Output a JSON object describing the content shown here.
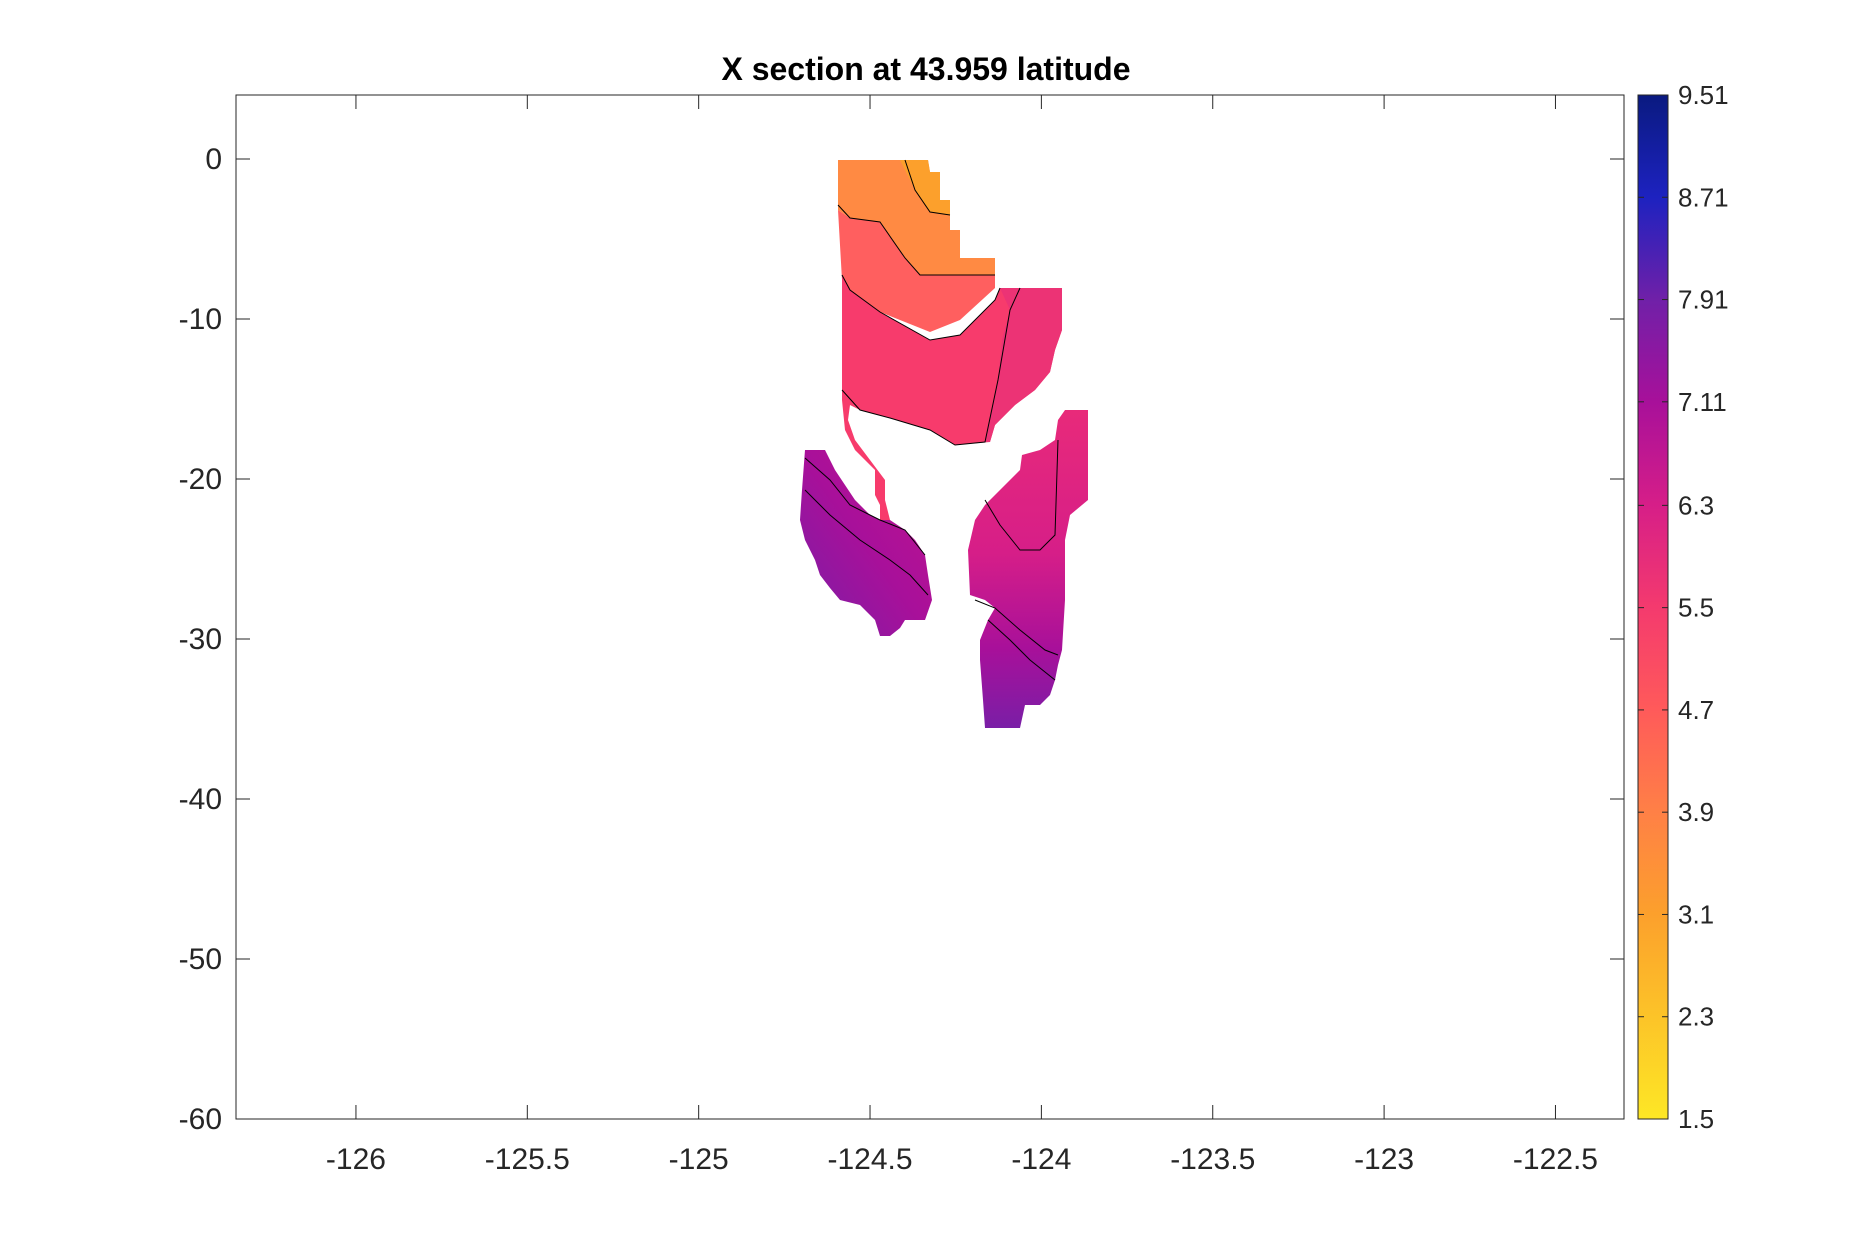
{
  "chart_data": {
    "type": "heatmap",
    "subtype": "filled-contour cross-section",
    "title": "X section at 43.959 latitude",
    "xlabel": "",
    "ylabel": "",
    "xlim": [
      -126.35,
      -122.3
    ],
    "ylim": [
      -60,
      4
    ],
    "x_ticks": [
      -126,
      -125.5,
      -125,
      -124.5,
      -124,
      -123.5,
      -123,
      -122.5
    ],
    "x_tick_labels": [
      "-126",
      "-125.5",
      "-125",
      "-124.5",
      "-124",
      "-123.5",
      "-123",
      "-122.5"
    ],
    "y_ticks": [
      0,
      -10,
      -20,
      -30,
      -40,
      -50,
      -60
    ],
    "y_tick_labels": [
      "0",
      "-10",
      "-20",
      "-30",
      "-40",
      "-50",
      "-60"
    ],
    "grid": false,
    "colorbar": {
      "position": "right",
      "min": 1.5,
      "max": 9.51,
      "ticks": [
        9.51,
        8.71,
        7.91,
        7.11,
        6.3,
        5.5,
        4.7,
        3.9,
        3.1,
        2.3,
        1.5
      ],
      "tick_labels": [
        "9.51",
        "8.71",
        "7.91",
        "7.11",
        "6.3",
        "5.5",
        "4.7",
        "3.9",
        "3.1",
        "2.3",
        "1.5"
      ],
      "colormap": [
        {
          "value": 1.5,
          "color": "#fde725"
        },
        {
          "value": 3.1,
          "color": "#fca02c"
        },
        {
          "value": 3.9,
          "color": "#ff8046"
        },
        {
          "value": 4.7,
          "color": "#ff5a5a"
        },
        {
          "value": 5.5,
          "color": "#f43a6e"
        },
        {
          "value": 6.3,
          "color": "#d61e88"
        },
        {
          "value": 7.11,
          "color": "#a8109a"
        },
        {
          "value": 7.91,
          "color": "#7020a8"
        },
        {
          "value": 8.71,
          "color": "#1d22c0"
        },
        {
          "value": 9.51,
          "color": "#0a1a80"
        }
      ]
    },
    "regions": [
      {
        "name": "upper-block",
        "lon_range": [
          -124.6,
          -124.3
        ],
        "depth_range": [
          0,
          -6
        ],
        "values_range": [
          3.6,
          4.4
        ]
      },
      {
        "name": "upper-main",
        "lon_range": [
          -124.6,
          -123.9
        ],
        "depth_range": [
          -6,
          -18
        ],
        "values_range": [
          4.2,
          5.4
        ]
      },
      {
        "name": "left-lobe",
        "lon_range": [
          -124.72,
          -124.35
        ],
        "depth_range": [
          -18.5,
          -29.5
        ],
        "values_range": [
          6.0,
          7.6
        ]
      },
      {
        "name": "right-lobe",
        "lon_range": [
          -124.22,
          -123.85
        ],
        "depth_range": [
          -16,
          -35.7
        ],
        "values_range": [
          5.6,
          7.8
        ]
      }
    ],
    "contour_levels": [
      3.9,
      4.7,
      5.5,
      6.3,
      7.11
    ]
  }
}
